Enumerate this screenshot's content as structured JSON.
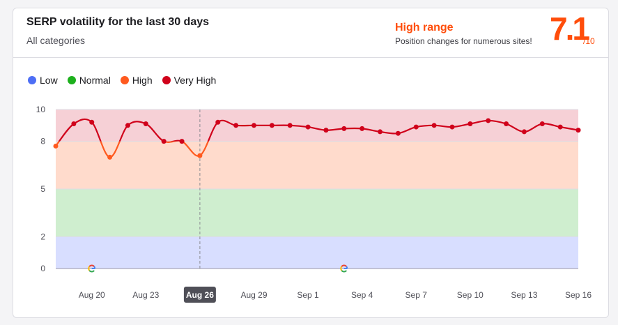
{
  "header": {
    "title": "SERP volatility for the last 30 days",
    "subtitle": "All categories",
    "range_label": "High range",
    "range_desc": "Position changes for numerous sites!",
    "score": "7.1",
    "score_max": "/10"
  },
  "legend": [
    {
      "label": "Low",
      "color": "#4d6ef5"
    },
    {
      "label": "Normal",
      "color": "#1db01d"
    },
    {
      "label": "High",
      "color": "#ff5a1f"
    },
    {
      "label": "Very High",
      "color": "#d0021b"
    }
  ],
  "chart_data": {
    "type": "line",
    "ylim": [
      0,
      10
    ],
    "yticks": [
      0,
      2,
      5,
      8,
      10
    ],
    "bands": [
      {
        "name": "Low",
        "from": 0,
        "to": 2,
        "color": "#d8deff"
      },
      {
        "name": "Normal",
        "from": 2,
        "to": 5,
        "color": "#cfeecf"
      },
      {
        "name": "High",
        "from": 5,
        "to": 8,
        "color": "#ffdbcc"
      },
      {
        "name": "Very High",
        "from": 8,
        "to": 10,
        "color": "#f6d0d6"
      }
    ],
    "x_tick_labels": [
      "Aug 20",
      "Aug 23",
      "Aug 26",
      "Aug 29",
      "Sep 1",
      "Sep 4",
      "Sep 7",
      "Sep 10",
      "Sep 13",
      "Sep 16"
    ],
    "x_tick_index": [
      2,
      5,
      8,
      11,
      14,
      17,
      20,
      23,
      26,
      29
    ],
    "highlight_label": "Aug 26",
    "highlight_index": 8,
    "google_update_index": [
      2,
      16
    ],
    "values": [
      7.7,
      9.1,
      9.2,
      7.0,
      9.0,
      9.1,
      8.0,
      8.0,
      7.1,
      9.2,
      9.0,
      9.0,
      9.0,
      9.0,
      8.9,
      8.7,
      8.8,
      8.8,
      8.6,
      8.5,
      8.9,
      9.0,
      8.9,
      9.1,
      9.3,
      9.1,
      8.6,
      9.1,
      8.9,
      8.7
    ],
    "line_color_high": "#ff5a1f",
    "line_color_very_high": "#d0021b"
  }
}
